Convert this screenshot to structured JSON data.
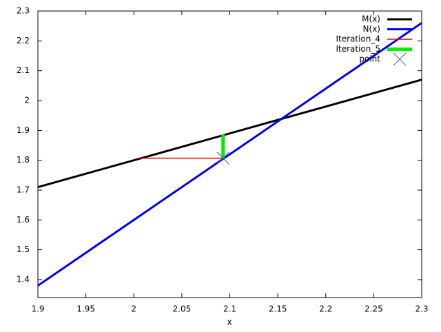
{
  "chart_data": {
    "type": "line",
    "xlabel": "x",
    "xlim": [
      1.9,
      2.3
    ],
    "xticks": [
      1.9,
      1.95,
      2,
      2.05,
      2.1,
      2.15,
      2.2,
      2.25,
      2.3
    ],
    "ylim": [
      1.34,
      2.3
    ],
    "yticks": [
      1.4,
      1.5,
      1.6,
      1.7,
      1.8,
      1.9,
      2,
      2.1,
      2.2,
      2.3
    ],
    "grid": false,
    "legend": "top-right",
    "series": [
      {
        "name": "M(x)",
        "color": "#000000",
        "style": "line",
        "width": 3,
        "x": [
          1.9,
          2.3
        ],
        "values": [
          1.71,
          2.07
        ]
      },
      {
        "name": "N(x)",
        "color": "#0000ee",
        "style": "line",
        "width": 3,
        "x": [
          1.9,
          2.3
        ],
        "values": [
          1.38,
          2.26
        ]
      },
      {
        "name": "Iteration_4",
        "color": "#dd0000",
        "style": "line",
        "width": 1.5,
        "x": [
          2.005,
          2.095
        ],
        "values": [
          1.807,
          1.807
        ]
      },
      {
        "name": "Iteration_5",
        "color": "#00ee00",
        "style": "line",
        "width": 5,
        "x": [
          2.093,
          2.093
        ],
        "values": [
          1.807,
          1.887
        ]
      },
      {
        "name": "point",
        "color": "#4060c0",
        "style": "point",
        "width": 1,
        "x": [
          2.093
        ],
        "values": [
          1.807
        ]
      }
    ]
  }
}
